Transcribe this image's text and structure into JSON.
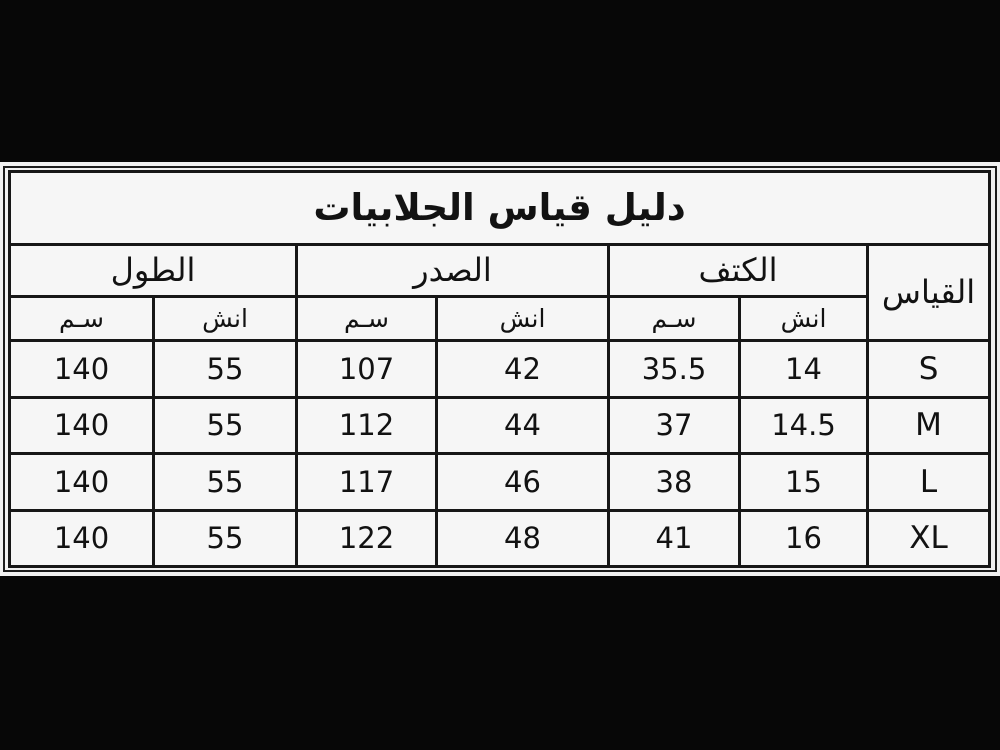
{
  "colors": {
    "letterbox": "#070707",
    "panel_background": "#f1f1f1",
    "cell_background": "#f6f6f6",
    "border": "#171717",
    "text": "#121212"
  },
  "table": {
    "title": "دليل قياس الجلابيات",
    "size_header": "القياس",
    "unit_cm": "سـم",
    "unit_inch": "انش",
    "groups": [
      {
        "label": "الطول"
      },
      {
        "label": "الصدر"
      },
      {
        "label": "الكتف"
      }
    ],
    "rows": [
      {
        "length_cm": "140",
        "length_in": "55",
        "chest_cm": "107",
        "chest_in": "42",
        "shoulder_cm": "35.5",
        "shoulder_in": "14",
        "size": "S"
      },
      {
        "length_cm": "140",
        "length_in": "55",
        "chest_cm": "112",
        "chest_in": "44",
        "shoulder_cm": "37",
        "shoulder_in": "14.5",
        "size": "M"
      },
      {
        "length_cm": "140",
        "length_in": "55",
        "chest_cm": "117",
        "chest_in": "46",
        "shoulder_cm": "38",
        "shoulder_in": "15",
        "size": "L"
      },
      {
        "length_cm": "140",
        "length_in": "55",
        "chest_cm": "122",
        "chest_in": "48",
        "shoulder_cm": "41",
        "shoulder_in": "16",
        "size": "XL"
      }
    ]
  }
}
